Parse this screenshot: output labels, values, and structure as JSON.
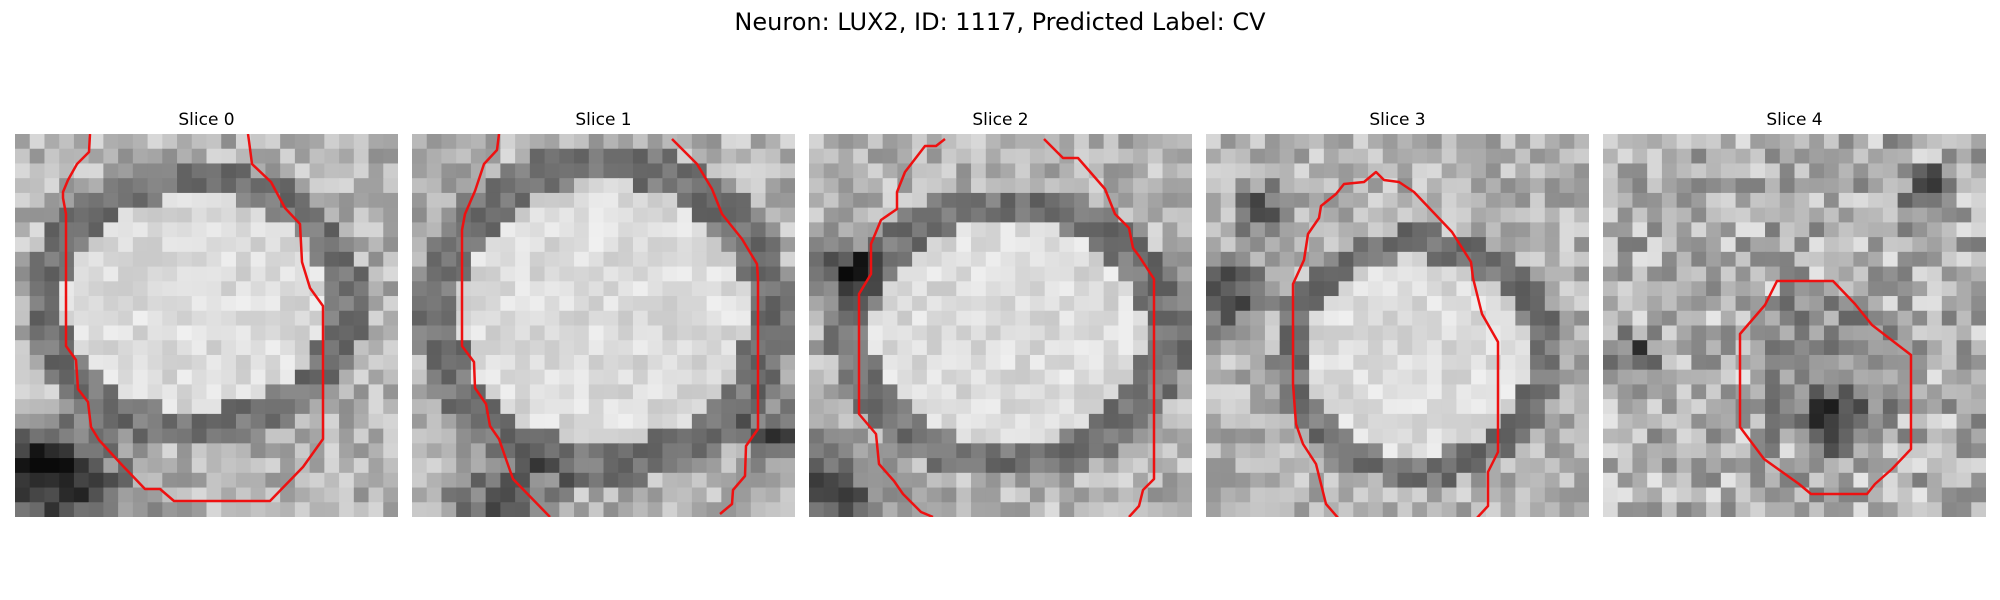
{
  "figure": {
    "title": "Neuron: LUX2, ID: 1117, Predicted Label: CV"
  },
  "panels": [
    {
      "title": "Slice 0"
    },
    {
      "title": "Slice 1"
    },
    {
      "title": "Slice 2"
    },
    {
      "title": "Slice 3"
    },
    {
      "title": "Slice 4"
    }
  ],
  "colors": {
    "contour": "#ee1111",
    "background": "#ffffff"
  }
}
